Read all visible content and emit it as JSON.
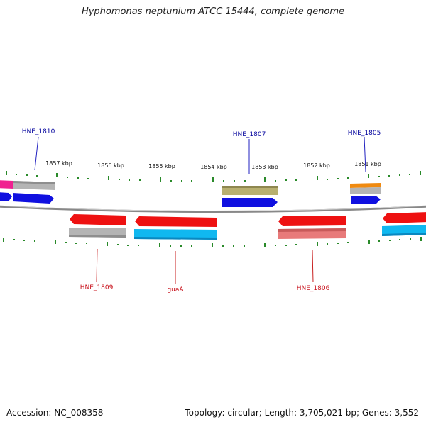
{
  "title": "Hyphomonas neptunium ATCC 15444, complete genome",
  "footer": {
    "accession": "Accession: NC_008358",
    "summary": "Topology: circular; Length: 3,705,021 bp; Genes: 3,552"
  },
  "ruler": {
    "ticks": [
      "1857 kbp",
      "1856 kbp",
      "1855 kbp",
      "1854 kbp",
      "1853 kbp",
      "1852 kbp",
      "1851 kbp"
    ]
  },
  "genes_top": [
    {
      "label": "HNE_1810",
      "color": "#00009c"
    },
    {
      "label": "HNE_1807",
      "color": "#00009c"
    },
    {
      "label": "HNE_1805",
      "color": "#00009c"
    }
  ],
  "genes_bottom": [
    {
      "label": "HNE_1809",
      "color": "#c8101a"
    },
    {
      "label": "guaA",
      "color": "#c8101a"
    },
    {
      "label": "HNE_1806",
      "color": "#c8101a"
    }
  ],
  "colors": {
    "backbone": "#888888",
    "tick": "#2a8a2a",
    "cds_forward": "#1010e0",
    "cds_reverse": "#ee1111",
    "gene_gray": "#b4b4b4",
    "gene_cyan": "#10b8f0",
    "gene_olive": "#b8b070",
    "gene_orange": "#f08a10",
    "gene_pink": "#f02090",
    "gene_salmon": "#e87a7a"
  }
}
